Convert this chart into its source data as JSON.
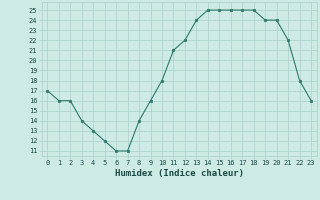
{
  "xlabel": "Humidex (Indice chaleur)",
  "ylabel": "",
  "x": [
    0,
    1,
    2,
    3,
    4,
    5,
    6,
    7,
    8,
    9,
    10,
    11,
    12,
    13,
    14,
    15,
    16,
    17,
    18,
    19,
    20,
    21,
    22,
    23
  ],
  "y": [
    17,
    16,
    16,
    14,
    13,
    12,
    11,
    11,
    14,
    16,
    18,
    21,
    22,
    24,
    25,
    25,
    25,
    25,
    25,
    24,
    24,
    22,
    18,
    16
  ],
  "xlim": [
    -0.5,
    23.5
  ],
  "ylim": [
    10.5,
    25.8
  ],
  "yticks": [
    11,
    12,
    13,
    14,
    15,
    16,
    17,
    18,
    19,
    20,
    21,
    22,
    23,
    24,
    25
  ],
  "xticks": [
    0,
    1,
    2,
    3,
    4,
    5,
    6,
    7,
    8,
    9,
    10,
    11,
    12,
    13,
    14,
    15,
    16,
    17,
    18,
    19,
    20,
    21,
    22,
    23
  ],
  "line_color": "#2d7a6b",
  "marker_color": "#2d7a6b",
  "bg_color": "#ceeae5",
  "grid_color": "#aad0cb",
  "tick_label_color": "#1a4a45",
  "xlabel_color": "#1a4a45",
  "tick_fontsize": 5.0,
  "xlabel_fontsize": 6.5
}
